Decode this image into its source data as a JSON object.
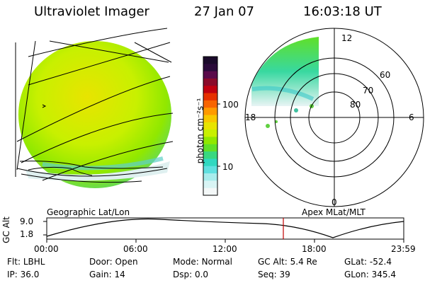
{
  "header": {
    "instrument": "Ultraviolet Imager",
    "date": "27 Jan 07",
    "time": "16:03:18 UT"
  },
  "colorbar": {
    "unit_label": "photon cm⁻²s⁻¹",
    "ticks": [
      "100",
      "10"
    ],
    "colors": [
      "#1a0a2a",
      "#2a0a3a",
      "#5a0a4a",
      "#8a0a2a",
      "#c00010",
      "#e63000",
      "#f86400",
      "#ff9a00",
      "#f8c800",
      "#e8e400",
      "#c8f000",
      "#90e800",
      "#60e028",
      "#38d880",
      "#30d8c0",
      "#60e0e0",
      "#a8ecec",
      "#d8f4f4",
      "#f4f8f8"
    ]
  },
  "left_map": {
    "label": "Geographic Lat/Lon"
  },
  "polar_plot": {
    "label": "Apex MLat/MLT",
    "mlt_labels": [
      "12",
      "18",
      "6",
      "0"
    ],
    "lat_labels": [
      "60",
      "70",
      "80"
    ]
  },
  "altitude_plot": {
    "ylabel": "GC Alt",
    "yticks": [
      "9.0",
      "1.8"
    ],
    "xticks": [
      "00:00",
      "06:00",
      "12:00",
      "18:00",
      "23:59"
    ],
    "marker_color": "#c00000"
  },
  "status": {
    "row1": [
      {
        "label": "Flt:",
        "value": "LBHL"
      },
      {
        "label": "Door:",
        "value": "Open"
      },
      {
        "label": "Mode:",
        "value": "Normal"
      },
      {
        "label": "GC Alt:",
        "value": "5.4 Re"
      },
      {
        "label": "GLat:",
        "value": "-52.4"
      }
    ],
    "row2": [
      {
        "label": "IP:",
        "value": "36.0"
      },
      {
        "label": "Gain:",
        "value": "14"
      },
      {
        "label": "Dsp:",
        "value": "0.0"
      },
      {
        "label": "Seq:",
        "value": "39"
      },
      {
        "label": "GLon:",
        "value": "345.4"
      }
    ]
  }
}
